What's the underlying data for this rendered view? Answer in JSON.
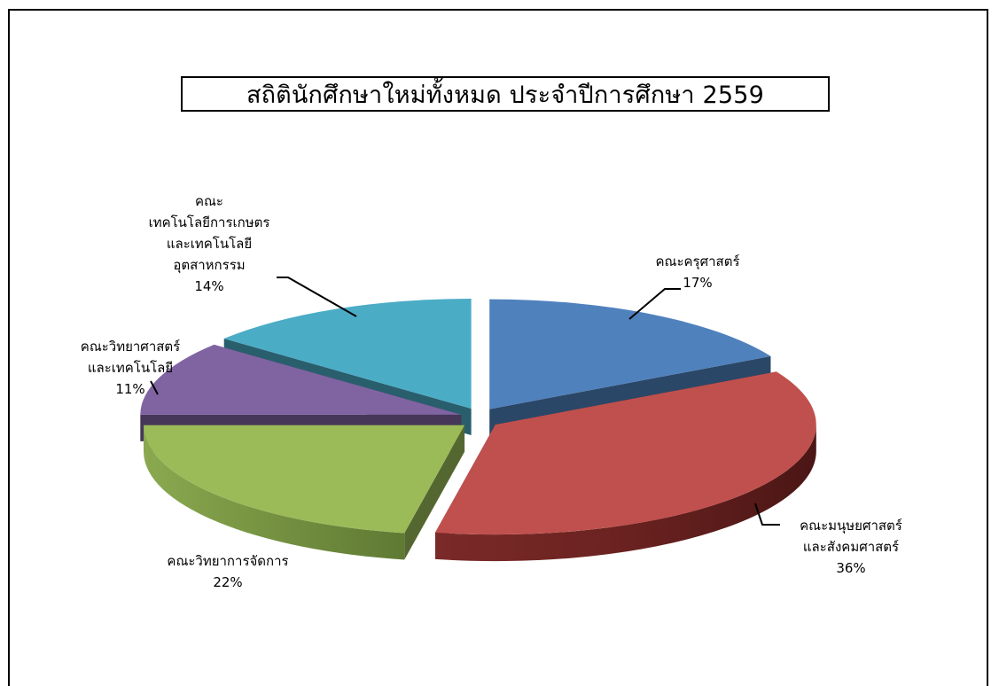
{
  "chart_data": {
    "type": "pie",
    "title": "สถิตินักศึกษาใหม่ทั้งหมด ประจำปีการศึกษา 2559",
    "three_d": true,
    "exploded": true,
    "slices": [
      {
        "label": "คณะครุศาสตร์",
        "value": 17,
        "value_label": "17%",
        "color": "#4F81BD"
      },
      {
        "label": "คณะมนุษยศาสตร์ และสังคมศาสตร์",
        "value": 36,
        "value_label": "36%",
        "color": "#C0504D"
      },
      {
        "label": "คณะวิทยาการจัดการ",
        "value": 22,
        "value_label": "22%",
        "color": "#9BBB59"
      },
      {
        "label": "คณะวิทยาศาสตร์ และเทคโนโลยี",
        "value": 11,
        "value_label": "11%",
        "color": "#8064A2"
      },
      {
        "label": "คณะ เทคโนโลยีการเกษตร และเทคโนโลยี อุตสาหกรรม",
        "value": 14,
        "value_label": "14%",
        "color": "#4BACC6"
      }
    ]
  },
  "labels": {
    "s0": [
      "คณะครุศาสตร์",
      "17%"
    ],
    "s1": [
      "คณะมนุษยศาสตร์",
      "และสังคมศาสตร์",
      "36%"
    ],
    "s2": [
      "คณะวิทยาการจัดการ",
      "22%"
    ],
    "s3": [
      "คณะวิทยาศาสตร์",
      "และเทคโนโลยี",
      "11%"
    ],
    "s4": [
      "คณะ",
      "เทคโนโลยีการเกษตร",
      "และเทคโนโลยี",
      "อุตสาหกรรม",
      "14%"
    ]
  }
}
